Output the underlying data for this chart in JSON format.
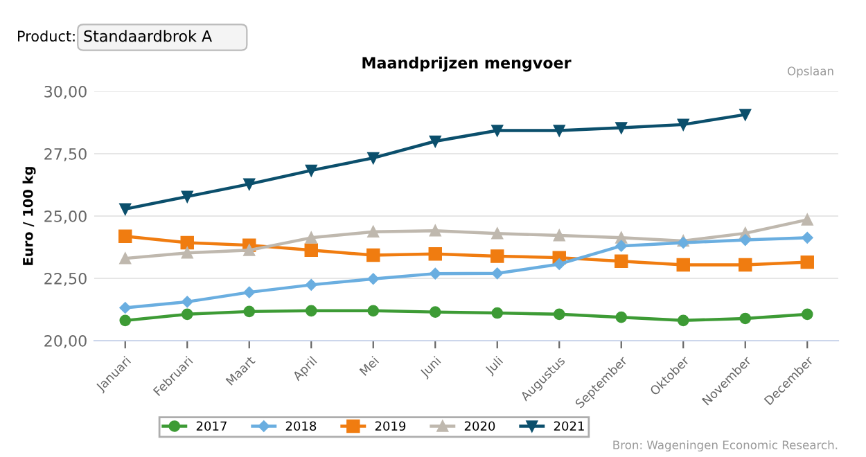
{
  "chart_data": {
    "type": "line",
    "title": "Maandprijzen mengvoer",
    "ylabel": "Euro / 100 kg",
    "categories": [
      "Januari",
      "Februari",
      "Maart",
      "April",
      "Mei",
      "Juni",
      "Juli",
      "Augustus",
      "September",
      "Oktober",
      "November",
      "December"
    ],
    "series": [
      {
        "name": "2017",
        "color": "#3d9b35",
        "marker": "circle",
        "values": [
          20.81,
          21.06,
          21.17,
          21.2,
          21.2,
          21.15,
          21.11,
          21.06,
          20.94,
          20.81,
          20.89,
          21.06
        ]
      },
      {
        "name": "2018",
        "color": "#6aaee0",
        "marker": "diamond",
        "values": [
          21.32,
          21.56,
          21.94,
          22.24,
          22.48,
          22.69,
          22.7,
          23.07,
          23.8,
          23.93,
          24.04,
          24.13
        ]
      },
      {
        "name": "2019",
        "color": "#f07c10",
        "marker": "square",
        "values": [
          24.19,
          23.93,
          23.83,
          23.63,
          23.43,
          23.48,
          23.39,
          23.33,
          23.19,
          23.04,
          23.04,
          23.15
        ]
      },
      {
        "name": "2020",
        "color": "#bfb8ae",
        "marker": "triangle",
        "values": [
          23.3,
          23.52,
          23.63,
          24.13,
          24.37,
          24.41,
          24.3,
          24.22,
          24.13,
          24.0,
          24.31,
          24.85
        ]
      },
      {
        "name": "2021",
        "color": "#0b4f6c",
        "marker": "triangle_down",
        "values": [
          25.28,
          25.78,
          26.28,
          26.83,
          27.33,
          28.0,
          28.43,
          28.43,
          28.54,
          28.67,
          29.07,
          null
        ]
      }
    ],
    "ylim": [
      20,
      30
    ],
    "yticks": [
      {
        "value": 20,
        "label": "20,00"
      },
      {
        "value": 22.5,
        "label": "22,50"
      },
      {
        "value": 25,
        "label": "25,00"
      },
      {
        "value": 27.5,
        "label": "27,50"
      },
      {
        "value": 30,
        "label": "30,00"
      }
    ],
    "grid": "y",
    "legend": "bottom",
    "line_style": "solid",
    "annotations": [
      "Product:",
      "Standaardbrok A",
      "Opslaan",
      "Bron: Wageningen Economic Research."
    ]
  }
}
